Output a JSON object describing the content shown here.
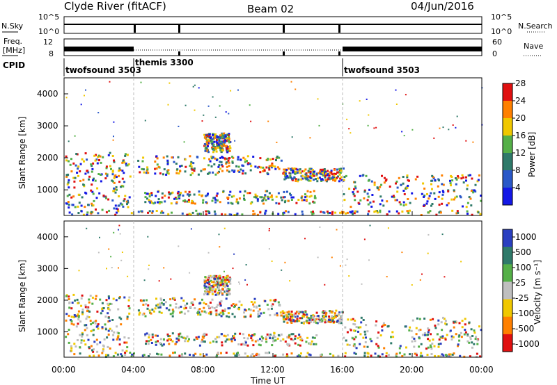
{
  "header": {
    "radar": "Clyde River (fitACF)",
    "beam": "Beam 02",
    "date": "04/Jun/2016"
  },
  "noise_panel": {
    "left_label": "N.Sky",
    "right_label": "N.Search",
    "left_ticks": [
      "10^5",
      "10^0"
    ],
    "right_ticks": [
      "10^5",
      "10^0"
    ]
  },
  "freq_panel": {
    "left_label_1": "Freq.",
    "left_label_2": "[MHz]",
    "right_label": "Nave",
    "left_ticks": [
      "12",
      "8"
    ],
    "right_ticks": [
      "60",
      "0"
    ]
  },
  "cpid": {
    "label": "CPID",
    "segments": [
      {
        "name": "twofsound 3503",
        "start_hour": 0
      },
      {
        "name": "themis 3300",
        "start_hour": 4
      },
      {
        "name": "twofsound 3503",
        "start_hour": 16
      }
    ]
  },
  "chart_data": [
    {
      "type": "heatmap",
      "title": "Power",
      "xlabel": "Time UT",
      "ylabel": "Slant Range [km]",
      "x_range_hours": [
        0,
        24
      ],
      "x_ticks": [
        "00:00",
        "04:00",
        "08:00",
        "12:00",
        "16:00",
        "20:00",
        "00:00"
      ],
      "y_ticks": [
        "1000",
        "2000",
        "3000",
        "4000"
      ],
      "ylim": [
        200,
        4500
      ],
      "colorbar": {
        "label": "Power [dB]",
        "ticks": [
          "4",
          "8",
          "12",
          "16",
          "20",
          "24",
          "28"
        ],
        "range": [
          0,
          30
        ],
        "colors": [
          "#1418e6",
          "#2a58c8",
          "#2f7a6a",
          "#55b048",
          "#f0c800",
          "#ff8000",
          "#e01010"
        ]
      },
      "dashed_lines_at_hours": [
        4,
        16
      ]
    },
    {
      "type": "heatmap",
      "title": "Velocity",
      "xlabel": "Time UT",
      "ylabel": "Slant Range [km]",
      "x_range_hours": [
        0,
        24
      ],
      "x_ticks": [
        "00:00",
        "04:00",
        "08:00",
        "12:00",
        "16:00",
        "20:00",
        "00:00"
      ],
      "y_ticks": [
        "1000",
        "2000",
        "3000",
        "4000"
      ],
      "ylim": [
        200,
        4500
      ],
      "colorbar": {
        "label": "Velocity [m s⁻¹]",
        "ticks": [
          "1000",
          "500",
          "100",
          "25",
          "-25",
          "-100",
          "-500",
          "-1000"
        ],
        "colors": [
          "#2a3fc0",
          "#2f7a6a",
          "#55b048",
          "#bfbfbf",
          "#f0c800",
          "#ff8000",
          "#e01010"
        ]
      },
      "dashed_lines_at_hours": [
        4,
        16
      ]
    }
  ],
  "time_axis_label": "Time UT"
}
